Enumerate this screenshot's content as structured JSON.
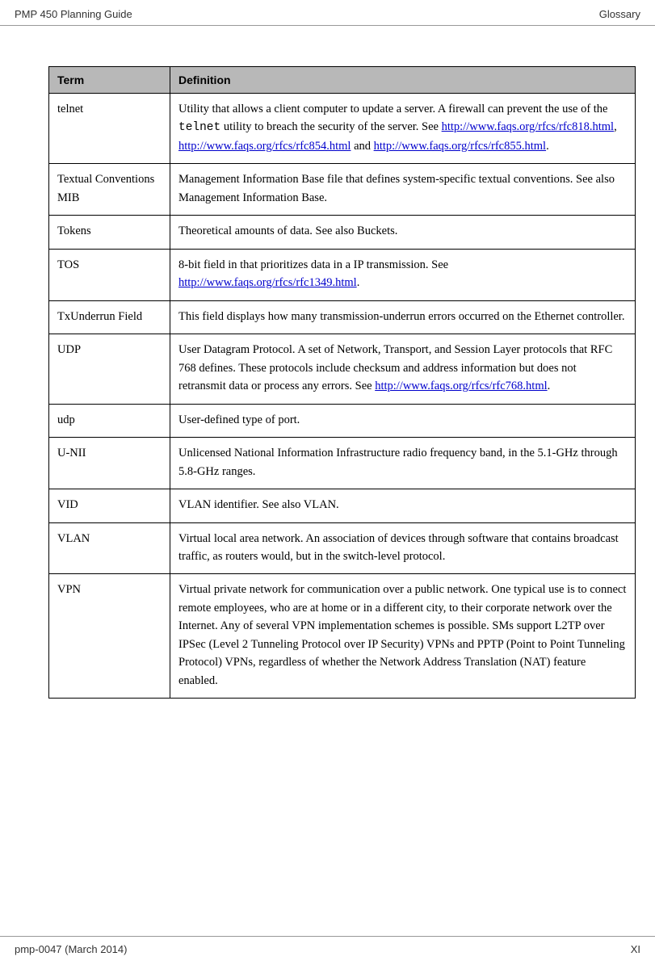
{
  "header": {
    "left": "PMP 450 Planning Guide",
    "right": "Glossary"
  },
  "footer": {
    "left": "pmp-0047 (March 2014)",
    "right": "XI"
  },
  "table": {
    "head_term": "Term",
    "head_def": "Definition",
    "rows": {
      "telnet": {
        "term": "telnet",
        "def_pre": "Utility that allows a client computer to update a server. A firewall can prevent the use of the ",
        "mono": "telnet",
        "def_mid": " utility to breach the security of the server. See ",
        "link1": "http://www.faqs.org/rfcs/rfc818.html",
        "sep1": ",  ",
        "link2": "http://www.faqs.org/rfcs/rfc854.html",
        "sep2": " and ",
        "link3": "http://www.faqs.org/rfcs/rfc855.html",
        "def_post": "."
      },
      "textual": {
        "term": "Textual Conventions MIB",
        "def": "Management Information Base file that defines system-specific textual conventions. See also Management Information Base."
      },
      "tokens": {
        "term": "Tokens",
        "def": "Theoretical amounts of data. See also Buckets."
      },
      "tos": {
        "term": "TOS",
        "def_pre": "8-bit field in that prioritizes data in a IP transmission. See ",
        "link1": "http://www.faqs.org/rfcs/rfc1349.html",
        "def_post": "."
      },
      "txunderrun": {
        "term": "TxUnderrun Field",
        "def": "This field displays how many transmission-underrun errors occurred on the Ethernet controller."
      },
      "udp_proto": {
        "term": "UDP",
        "def_pre": "User Datagram Protocol. A set of Network, Transport, and Session Layer protocols that RFC 768 defines. These protocols include checksum and address information but does not retransmit data or process any errors. See ",
        "link1": "http://www.faqs.org/rfcs/rfc768.html",
        "def_post": "."
      },
      "udp_port": {
        "term": "udp",
        "def": "User-defined type of port."
      },
      "unii": {
        "term": "U-NII",
        "def": "Unlicensed National Information Infrastructure radio frequency band, in the 5.1-GHz through 5.8-GHz ranges."
      },
      "vid": {
        "term": "VID",
        "def": "VLAN identifier. See also VLAN."
      },
      "vlan": {
        "term": "VLAN",
        "def": "Virtual local area network. An association of devices through software that contains broadcast traffic, as routers would, but in the switch-level protocol."
      },
      "vpn": {
        "term": "VPN",
        "def": "Virtual private network for communication over a public network. One typical use is to connect remote employees, who are at home or in a different city, to their corporate network over the Internet. Any of several VPN implementation schemes is possible. SMs support L2TP over IPSec (Level 2 Tunneling Protocol over IP Security) VPNs and PPTP (Point to Point Tunneling Protocol) VPNs, regardless of whether the Network Address Translation (NAT) feature enabled."
      }
    }
  }
}
